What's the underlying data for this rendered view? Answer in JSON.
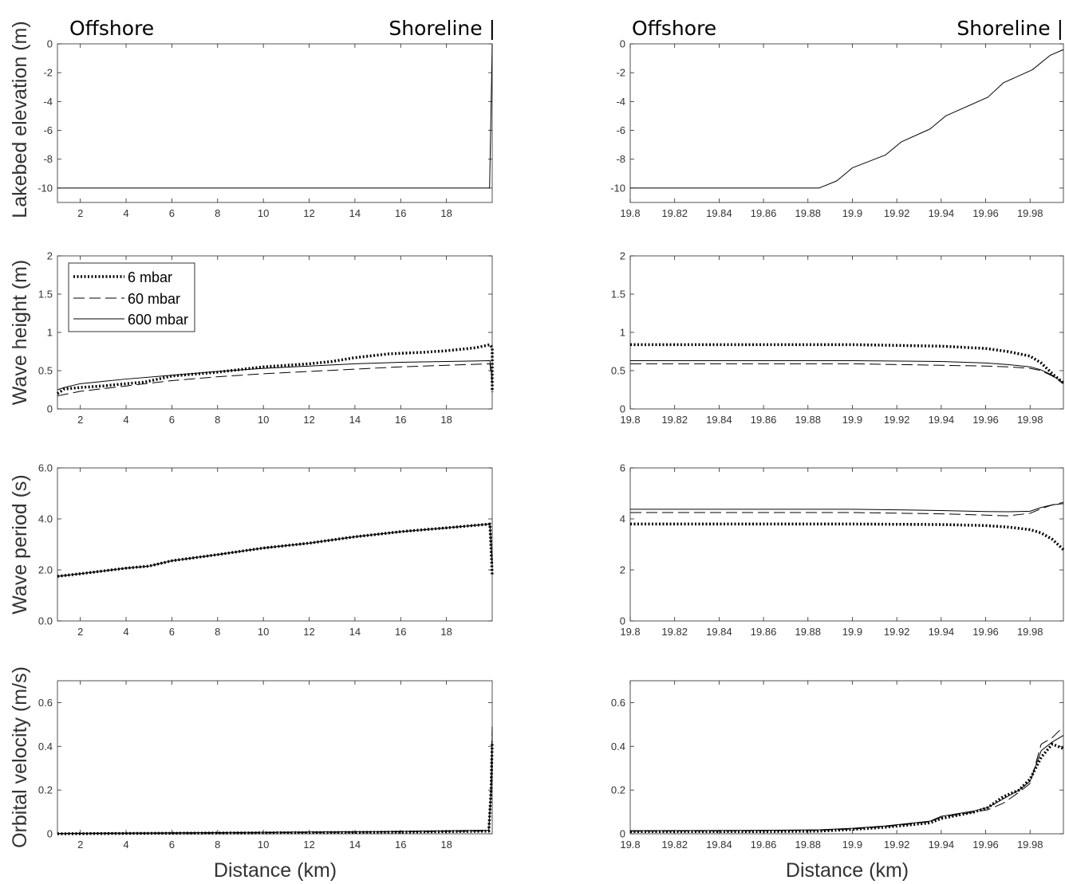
{
  "header_labels": {
    "left_offshore": "Offshore",
    "left_shoreline": "Shoreline |",
    "right_offshore": "Offshore",
    "right_shoreline": "Shoreline |"
  },
  "y_axis_labels": [
    "Lakebed elevation (m)",
    "Wave height (m)",
    "Wave period (s)",
    "Orbital velocity (m/s)"
  ],
  "x_axis_label": "Distance (km)",
  "legend": [
    "6 mbar",
    "60 mbar",
    "600 mbar"
  ],
  "line_styles": {
    "6 mbar": "dotted-thick",
    "60 mbar": "dashed",
    "600 mbar": "solid"
  },
  "colors": {
    "lines": "#000000",
    "axis_text": "#333333",
    "background": "#ffffff"
  },
  "chart_data": [
    {
      "type": "line",
      "panel": "left-1",
      "ylabel": "Lakebed elevation (m)",
      "xlabel": "",
      "xlim": [
        1,
        20
      ],
      "ylim": [
        -11,
        0
      ],
      "xticks": [
        2,
        4,
        6,
        8,
        10,
        12,
        14,
        16,
        18
      ],
      "yticks": [
        -10,
        -8,
        -6,
        -4,
        -2,
        0
      ],
      "series": [
        {
          "style": "solid",
          "x": [
            1,
            19.885,
            19.99,
            20.0
          ],
          "y": [
            -10,
            -10,
            -1.0,
            0
          ]
        }
      ]
    },
    {
      "type": "line",
      "panel": "right-1",
      "ylabel": "",
      "xlabel": "",
      "xlim": [
        19.8,
        19.995
      ],
      "ylim": [
        -11,
        0
      ],
      "xticks": [
        19.8,
        19.82,
        19.84,
        19.86,
        19.88,
        19.9,
        19.92,
        19.94,
        19.96,
        19.98
      ],
      "yticks": [
        -10,
        -8,
        -6,
        -4,
        -2,
        0
      ],
      "series": [
        {
          "style": "solid",
          "x": [
            19.8,
            19.885,
            19.893,
            19.9,
            19.915,
            19.922,
            19.935,
            19.942,
            19.961,
            19.968,
            19.981,
            19.989,
            19.995
          ],
          "y": [
            -10,
            -10,
            -9.5,
            -8.6,
            -7.7,
            -6.8,
            -5.9,
            -5.0,
            -3.7,
            -2.7,
            -1.8,
            -0.8,
            -0.4
          ]
        }
      ]
    },
    {
      "type": "line",
      "panel": "left-2",
      "ylabel": "Wave height (m)",
      "xlabel": "",
      "xlim": [
        1,
        20
      ],
      "ylim": [
        0,
        2
      ],
      "xticks": [
        2,
        4,
        6,
        8,
        10,
        12,
        14,
        16,
        18
      ],
      "yticks": [
        0,
        0.5,
        1,
        1.5,
        2
      ],
      "ytick_labels": [
        "0",
        "0.5",
        "1",
        "1.5",
        "2"
      ],
      "legend_position": "top-left",
      "series": [
        {
          "name": "6 mbar",
          "style": "dotted",
          "x": [
            1,
            1.3,
            2,
            3,
            4,
            4.8,
            6,
            8,
            10,
            12,
            13,
            14,
            15.5,
            17,
            18,
            19.3,
            19.9,
            20.0,
            20.0
          ],
          "y": [
            0.2,
            0.26,
            0.28,
            0.3,
            0.33,
            0.35,
            0.43,
            0.48,
            0.55,
            0.59,
            0.62,
            0.67,
            0.72,
            0.74,
            0.76,
            0.8,
            0.84,
            0.8,
            0.22
          ]
        },
        {
          "name": "60 mbar",
          "style": "dashed",
          "x": [
            1,
            2,
            4,
            6,
            8,
            10,
            12,
            14,
            16,
            18,
            19.9,
            20.0
          ],
          "y": [
            0.17,
            0.23,
            0.3,
            0.37,
            0.42,
            0.46,
            0.49,
            0.52,
            0.55,
            0.57,
            0.59,
            0.33
          ]
        },
        {
          "name": "600 mbar",
          "style": "solid",
          "x": [
            1,
            1.3,
            2,
            4,
            6,
            8,
            10,
            12,
            14,
            16,
            18,
            19.9,
            20.0
          ],
          "y": [
            0.25,
            0.28,
            0.33,
            0.39,
            0.44,
            0.49,
            0.53,
            0.56,
            0.59,
            0.61,
            0.62,
            0.63,
            0.38
          ]
        }
      ]
    },
    {
      "type": "line",
      "panel": "right-2",
      "ylabel": "",
      "xlabel": "",
      "xlim": [
        19.8,
        19.995
      ],
      "ylim": [
        0,
        2
      ],
      "xticks": [
        19.8,
        19.82,
        19.84,
        19.86,
        19.88,
        19.9,
        19.92,
        19.94,
        19.96,
        19.98
      ],
      "yticks": [
        0,
        0.5,
        1,
        1.5,
        2
      ],
      "ytick_labels": [
        "0",
        "0.5",
        "1",
        "1.5",
        "2"
      ],
      "series": [
        {
          "name": "6 mbar",
          "style": "dotted",
          "x": [
            19.8,
            19.9,
            19.94,
            19.96,
            19.97,
            19.98,
            19.985,
            19.99,
            19.995
          ],
          "y": [
            0.84,
            0.84,
            0.82,
            0.79,
            0.75,
            0.69,
            0.6,
            0.46,
            0.34
          ]
        },
        {
          "name": "60 mbar",
          "style": "dashed",
          "x": [
            19.8,
            19.9,
            19.94,
            19.96,
            19.97,
            19.98,
            19.985,
            19.99,
            19.995
          ],
          "y": [
            0.59,
            0.59,
            0.57,
            0.56,
            0.55,
            0.53,
            0.5,
            0.43,
            0.33
          ]
        },
        {
          "name": "600 mbar",
          "style": "solid",
          "x": [
            19.8,
            19.9,
            19.94,
            19.96,
            19.97,
            19.98,
            19.985,
            19.99,
            19.995
          ],
          "y": [
            0.63,
            0.63,
            0.62,
            0.6,
            0.58,
            0.55,
            0.51,
            0.44,
            0.34
          ]
        }
      ]
    },
    {
      "type": "line",
      "panel": "left-3",
      "ylabel": "Wave period (s)",
      "xlabel": "",
      "xlim": [
        1,
        20
      ],
      "ylim": [
        0,
        6
      ],
      "xticks": [
        2,
        4,
        6,
        8,
        10,
        12,
        14,
        16,
        18
      ],
      "yticks": [
        0,
        2,
        4,
        6
      ],
      "ytick_labels": [
        "0.0",
        "2.0",
        "4.0",
        "6.0"
      ],
      "series": [
        {
          "name": "6 mbar",
          "style": "dotted",
          "x": [
            1,
            2,
            4,
            5,
            6,
            8,
            10,
            12,
            14,
            16,
            18,
            19.9,
            20.0
          ],
          "y": [
            1.75,
            1.85,
            2.07,
            2.15,
            2.36,
            2.6,
            2.86,
            3.05,
            3.3,
            3.5,
            3.65,
            3.8,
            1.8
          ]
        },
        {
          "name": "60 mbar",
          "style": "dashed",
          "x": [
            1,
            2,
            4,
            5,
            6,
            8,
            10,
            12,
            14,
            16,
            18,
            19.9,
            20.0
          ],
          "y": [
            1.75,
            1.85,
            2.07,
            2.15,
            2.36,
            2.6,
            2.86,
            3.05,
            3.3,
            3.5,
            3.65,
            3.8,
            2.1
          ]
        },
        {
          "name": "600 mbar",
          "style": "solid",
          "x": [
            1,
            2,
            4,
            5,
            6,
            8,
            10,
            12,
            14,
            16,
            18,
            19.9,
            20.0
          ],
          "y": [
            1.75,
            1.85,
            2.07,
            2.15,
            2.36,
            2.6,
            2.86,
            3.05,
            3.3,
            3.5,
            3.65,
            3.8,
            2.2
          ]
        }
      ]
    },
    {
      "type": "line",
      "panel": "right-3",
      "ylabel": "",
      "xlabel": "",
      "xlim": [
        19.8,
        19.995
      ],
      "ylim": [
        0,
        6
      ],
      "xticks": [
        19.8,
        19.82,
        19.84,
        19.86,
        19.88,
        19.9,
        19.92,
        19.94,
        19.96,
        19.98
      ],
      "yticks": [
        0,
        2,
        4,
        6
      ],
      "ytick_labels": [
        "0",
        "2",
        "4",
        "6"
      ],
      "series": [
        {
          "name": "6 mbar",
          "style": "dotted",
          "x": [
            19.8,
            19.9,
            19.94,
            19.96,
            19.97,
            19.98,
            19.985,
            19.99,
            19.995
          ],
          "y": [
            3.8,
            3.8,
            3.78,
            3.74,
            3.68,
            3.58,
            3.45,
            3.2,
            2.8
          ]
        },
        {
          "name": "60 mbar",
          "style": "dashed",
          "x": [
            19.8,
            19.9,
            19.94,
            19.96,
            19.97,
            19.98,
            19.985,
            19.99,
            19.995
          ],
          "y": [
            4.25,
            4.25,
            4.2,
            4.15,
            4.12,
            4.22,
            4.4,
            4.55,
            4.65
          ]
        },
        {
          "name": "600 mbar",
          "style": "solid",
          "x": [
            19.8,
            19.9,
            19.94,
            19.96,
            19.97,
            19.98,
            19.985,
            19.99,
            19.995
          ],
          "y": [
            4.38,
            4.38,
            4.33,
            4.29,
            4.28,
            4.3,
            4.45,
            4.55,
            4.6
          ]
        }
      ]
    },
    {
      "type": "line",
      "panel": "left-4",
      "ylabel": "Orbital velocity (m/s)",
      "xlabel": "Distance (km)",
      "xlim": [
        1,
        20
      ],
      "ylim": [
        0,
        0.7
      ],
      "xticks": [
        2,
        4,
        6,
        8,
        10,
        12,
        14,
        16,
        18
      ],
      "yticks": [
        0,
        0.2,
        0.4,
        0.6
      ],
      "ytick_labels": [
        "0",
        "0.2",
        "0.4",
        "0.6"
      ],
      "series": [
        {
          "name": "6 mbar",
          "style": "dotted",
          "x": [
            1,
            5,
            10,
            15,
            19.85,
            19.95,
            20.0
          ],
          "y": [
            0.0,
            0.002,
            0.004,
            0.007,
            0.012,
            0.2,
            0.42
          ]
        },
        {
          "name": "60 mbar",
          "style": "dashed",
          "x": [
            1,
            5,
            10,
            15,
            19.85,
            19.95,
            20.0
          ],
          "y": [
            0.001,
            0.003,
            0.005,
            0.008,
            0.013,
            0.2,
            0.49
          ]
        },
        {
          "name": "600 mbar",
          "style": "solid",
          "x": [
            1,
            5,
            10,
            15,
            19.85,
            19.95,
            20.0
          ],
          "y": [
            0.002,
            0.004,
            0.007,
            0.01,
            0.016,
            0.2,
            0.45
          ]
        }
      ]
    },
    {
      "type": "line",
      "panel": "right-4",
      "ylabel": "",
      "xlabel": "Distance (km)",
      "xlim": [
        19.8,
        19.995
      ],
      "ylim": [
        0,
        0.7
      ],
      "xticks": [
        19.8,
        19.82,
        19.84,
        19.86,
        19.88,
        19.9,
        19.92,
        19.94,
        19.96,
        19.98
      ],
      "yticks": [
        0,
        0.2,
        0.4,
        0.6
      ],
      "ytick_labels": [
        "0",
        "0.2",
        "0.4",
        "0.6"
      ],
      "series": [
        {
          "name": "6 mbar",
          "style": "dotted",
          "x": [
            19.8,
            19.86,
            19.885,
            19.9,
            19.915,
            19.935,
            19.94,
            19.955,
            19.961,
            19.968,
            19.975,
            19.98,
            19.985,
            19.99,
            19.995
          ],
          "y": [
            0.01,
            0.01,
            0.012,
            0.02,
            0.03,
            0.05,
            0.07,
            0.1,
            0.12,
            0.17,
            0.2,
            0.25,
            0.35,
            0.41,
            0.39
          ]
        },
        {
          "name": "60 mbar",
          "style": "dashed",
          "x": [
            19.8,
            19.86,
            19.885,
            19.9,
            19.915,
            19.935,
            19.94,
            19.955,
            19.961,
            19.968,
            19.975,
            19.98,
            19.985,
            19.99,
            19.995
          ],
          "y": [
            0.012,
            0.014,
            0.016,
            0.022,
            0.033,
            0.055,
            0.075,
            0.1,
            0.11,
            0.14,
            0.19,
            0.23,
            0.41,
            0.44,
            0.49
          ]
        },
        {
          "name": "600 mbar",
          "style": "solid",
          "x": [
            19.8,
            19.86,
            19.885,
            19.9,
            19.915,
            19.935,
            19.94,
            19.955,
            19.961,
            19.968,
            19.975,
            19.98,
            19.985,
            19.99,
            19.995
          ],
          "y": [
            0.014,
            0.016,
            0.018,
            0.025,
            0.036,
            0.058,
            0.08,
            0.105,
            0.12,
            0.16,
            0.2,
            0.24,
            0.38,
            0.42,
            0.45
          ]
        }
      ]
    }
  ]
}
